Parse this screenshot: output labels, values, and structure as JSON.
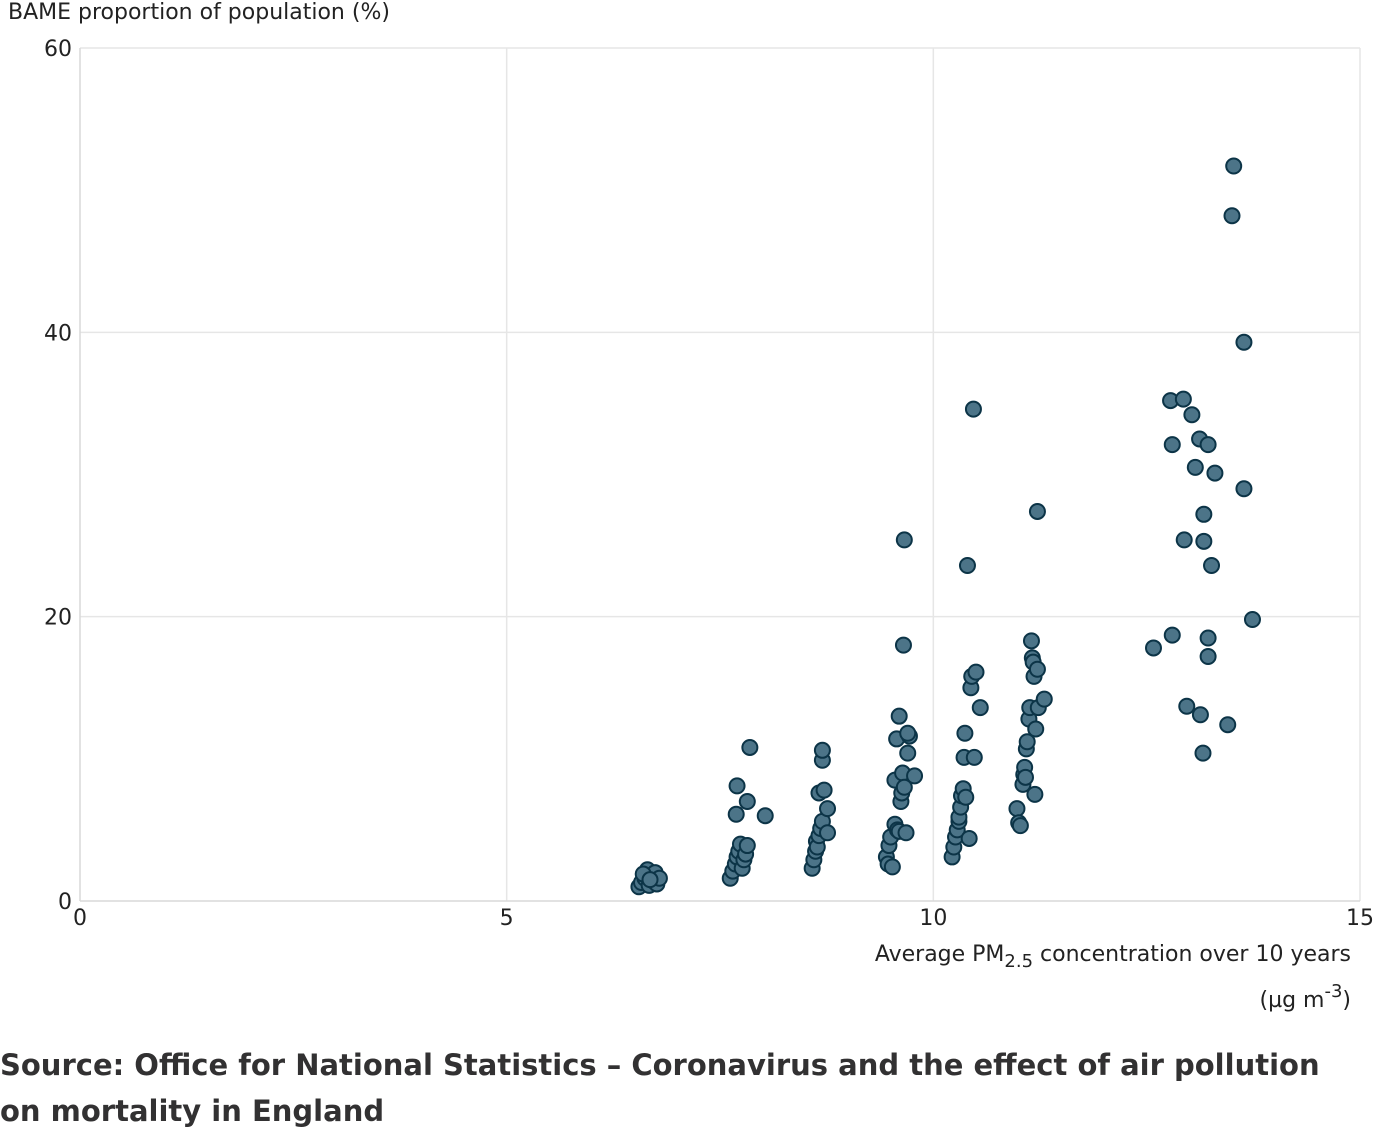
{
  "chart_data": {
    "type": "scatter",
    "ylabel": "BAME proportion of population (%)",
    "xlabel_parts": {
      "pre": "Average PM",
      "sub": "2.5",
      "post": " concentration over 10 years",
      "line2_pre": "(µg m",
      "sup": "-3",
      "line2_post": ")"
    },
    "xlim": [
      0,
      15
    ],
    "ylim": [
      0,
      60
    ],
    "x_ticks": [
      0,
      5,
      10,
      15
    ],
    "y_ticks": [
      0,
      20,
      40,
      60
    ],
    "grid": true,
    "marker_color": "#4c7488",
    "marker_edge": "#0c3447",
    "points": [
      [
        6.55,
        1.0
      ],
      [
        6.58,
        1.3
      ],
      [
        6.62,
        1.6
      ],
      [
        6.65,
        2.2
      ],
      [
        6.67,
        1.1
      ],
      [
        6.7,
        1.8
      ],
      [
        6.72,
        1.4
      ],
      [
        6.74,
        2.0
      ],
      [
        6.76,
        1.2
      ],
      [
        6.79,
        1.6
      ],
      [
        6.6,
        1.9
      ],
      [
        6.68,
        1.5
      ],
      [
        7.62,
        1.6
      ],
      [
        7.65,
        2.1
      ],
      [
        7.68,
        2.6
      ],
      [
        7.7,
        3.1
      ],
      [
        7.72,
        3.5
      ],
      [
        7.74,
        4.0
      ],
      [
        7.76,
        2.3
      ],
      [
        7.78,
        2.9
      ],
      [
        7.8,
        3.3
      ],
      [
        7.82,
        3.9
      ],
      [
        7.69,
        6.1
      ],
      [
        7.7,
        8.1
      ],
      [
        7.82,
        7.0
      ],
      [
        7.85,
        10.8
      ],
      [
        8.03,
        6.0
      ],
      [
        8.58,
        2.3
      ],
      [
        8.6,
        2.9
      ],
      [
        8.62,
        3.5
      ],
      [
        8.63,
        4.2
      ],
      [
        8.64,
        3.8
      ],
      [
        8.66,
        4.6
      ],
      [
        8.68,
        5.1
      ],
      [
        8.7,
        5.6
      ],
      [
        8.76,
        4.8
      ],
      [
        8.66,
        7.6
      ],
      [
        8.72,
        7.8
      ],
      [
        8.76,
        6.5
      ],
      [
        8.7,
        9.9
      ],
      [
        8.7,
        10.6
      ],
      [
        9.45,
        3.1
      ],
      [
        9.47,
        2.6
      ],
      [
        9.48,
        3.9
      ],
      [
        9.5,
        4.5
      ],
      [
        9.52,
        2.4
      ],
      [
        9.55,
        5.4
      ],
      [
        9.58,
        5.0
      ],
      [
        9.6,
        4.9
      ],
      [
        9.68,
        4.8
      ],
      [
        9.55,
        8.5
      ],
      [
        9.57,
        11.4
      ],
      [
        9.6,
        13.0
      ],
      [
        9.62,
        7.0
      ],
      [
        9.63,
        7.6
      ],
      [
        9.64,
        9.0
      ],
      [
        9.66,
        8.0
      ],
      [
        9.7,
        10.4
      ],
      [
        9.72,
        11.6
      ],
      [
        9.78,
        8.8
      ],
      [
        9.7,
        11.8
      ],
      [
        9.65,
        18.0
      ],
      [
        9.66,
        25.4
      ],
      [
        10.22,
        3.1
      ],
      [
        10.24,
        3.8
      ],
      [
        10.26,
        4.5
      ],
      [
        10.28,
        5.0
      ],
      [
        10.3,
        5.6
      ],
      [
        10.3,
        5.9
      ],
      [
        10.32,
        6.6
      ],
      [
        10.33,
        7.4
      ],
      [
        10.35,
        7.9
      ],
      [
        10.38,
        7.3
      ],
      [
        10.36,
        10.1
      ],
      [
        10.37,
        11.8
      ],
      [
        10.42,
        4.4
      ],
      [
        10.44,
        15.0
      ],
      [
        10.45,
        15.8
      ],
      [
        10.48,
        10.1
      ],
      [
        10.5,
        16.1
      ],
      [
        10.55,
        13.6
      ],
      [
        10.4,
        23.6
      ],
      [
        10.47,
        34.6
      ],
      [
        10.98,
        6.5
      ],
      [
        11.0,
        5.5
      ],
      [
        11.02,
        5.3
      ],
      [
        11.05,
        8.2
      ],
      [
        11.06,
        8.9
      ],
      [
        11.07,
        9.4
      ],
      [
        11.08,
        8.7
      ],
      [
        11.09,
        10.7
      ],
      [
        11.1,
        11.2
      ],
      [
        11.12,
        12.8
      ],
      [
        11.13,
        13.6
      ],
      [
        11.15,
        18.3
      ],
      [
        11.16,
        17.1
      ],
      [
        11.17,
        16.8
      ],
      [
        11.18,
        15.8
      ],
      [
        11.19,
        7.5
      ],
      [
        11.2,
        12.1
      ],
      [
        11.22,
        16.3
      ],
      [
        11.23,
        13.6
      ],
      [
        11.3,
        14.2
      ],
      [
        11.22,
        27.4
      ],
      [
        12.58,
        17.8
      ],
      [
        12.78,
        35.2
      ],
      [
        12.8,
        32.1
      ],
      [
        12.8,
        18.7
      ],
      [
        12.93,
        35.3
      ],
      [
        12.94,
        25.4
      ],
      [
        12.97,
        13.7
      ],
      [
        13.03,
        34.2
      ],
      [
        13.07,
        30.5
      ],
      [
        13.12,
        32.5
      ],
      [
        13.13,
        13.1
      ],
      [
        13.16,
        10.4
      ],
      [
        13.17,
        27.2
      ],
      [
        13.17,
        25.3
      ],
      [
        13.22,
        32.1
      ],
      [
        13.22,
        18.5
      ],
      [
        13.22,
        17.2
      ],
      [
        13.26,
        23.6
      ],
      [
        13.3,
        30.1
      ],
      [
        13.45,
        12.4
      ],
      [
        13.5,
        48.2
      ],
      [
        13.52,
        51.7
      ],
      [
        13.64,
        39.3
      ],
      [
        13.64,
        29.0
      ],
      [
        13.74,
        19.8
      ]
    ],
    "source": "Source: Office for National Statistics – Coronavirus and the effect of air pollution on mortality in England"
  }
}
